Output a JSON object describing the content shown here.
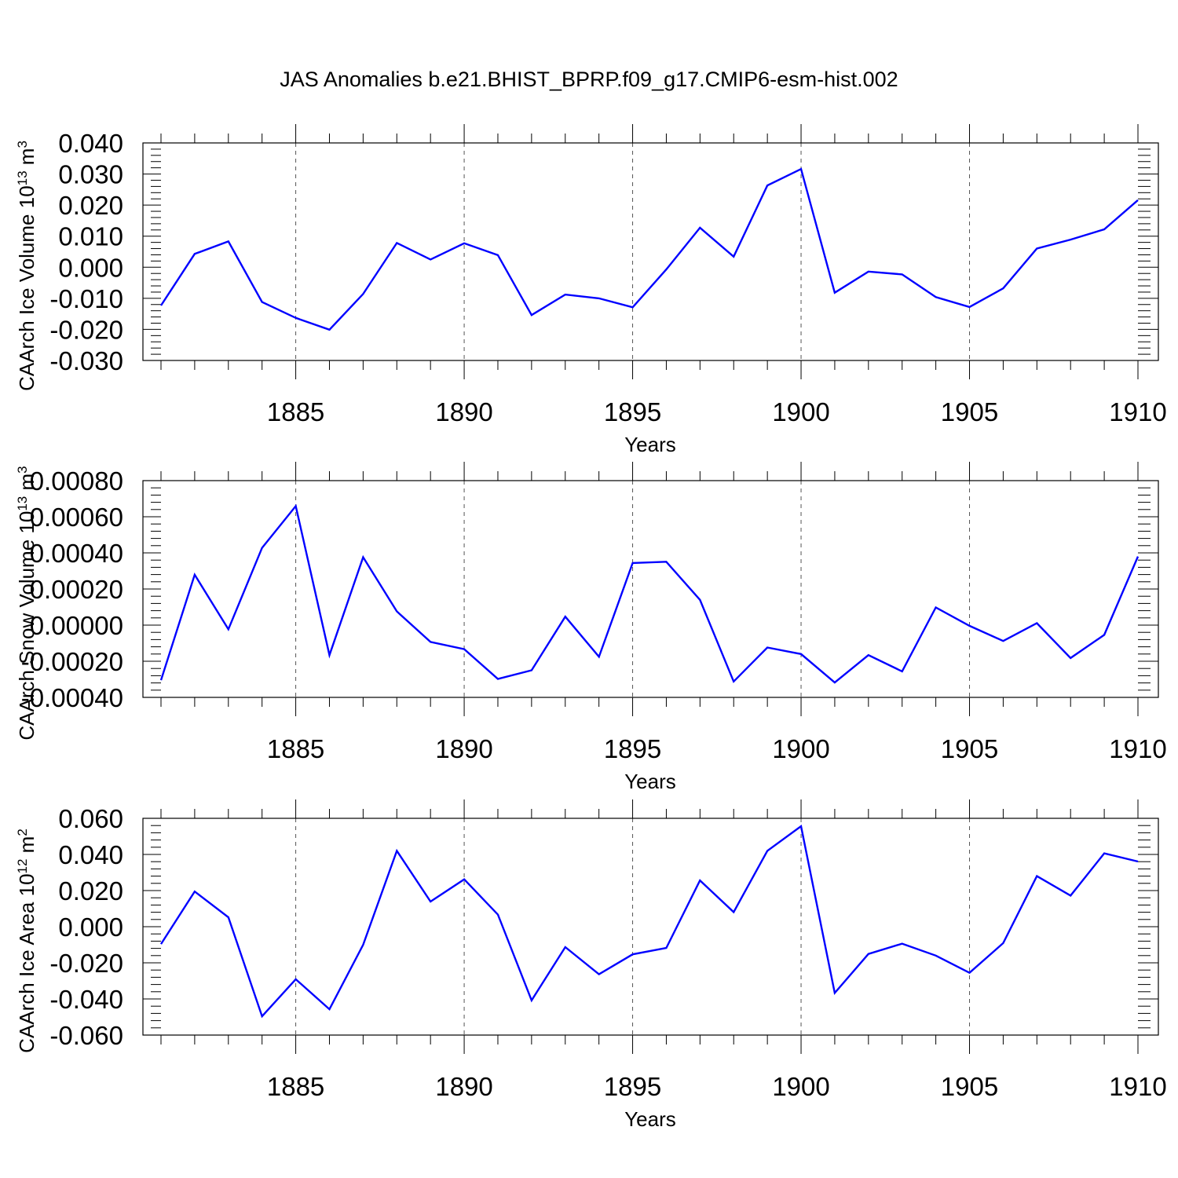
{
  "title": "JAS Anomalies b.e21.BHIST_BPRP.f09_g17.CMIP6-esm-hist.002",
  "chart_data": [
    {
      "type": "line",
      "ylabel": "CAArch Ice Volume 10",
      "ylabel_sup": "13",
      "ylabel_unit": " m",
      "ylabel_unit_sup": "3",
      "xlabel": "Years",
      "xlim": [
        1881,
        1910
      ],
      "ylim": [
        -0.03,
        0.04
      ],
      "xticks": [
        1885,
        1890,
        1895,
        1900,
        1905,
        1910
      ],
      "xtick_labels": [
        "1885",
        "1890",
        "1895",
        "1900",
        "1905",
        "1910"
      ],
      "yticks": [
        -0.03,
        -0.02,
        -0.01,
        0.0,
        0.01,
        0.02,
        0.03,
        0.04
      ],
      "ytick_labels": [
        "-0.030",
        "-0.020",
        "-0.010",
        "0.000",
        "0.010",
        "0.020",
        "0.030",
        "0.040"
      ],
      "x": [
        1881,
        1882,
        1883,
        1884,
        1885,
        1886,
        1887,
        1888,
        1889,
        1890,
        1891,
        1892,
        1893,
        1894,
        1895,
        1896,
        1897,
        1898,
        1899,
        1900,
        1901,
        1902,
        1903,
        1904,
        1905,
        1906,
        1907,
        1908,
        1909,
        1910
      ],
      "values": [
        -0.0123,
        0.0043,
        0.0083,
        -0.0112,
        -0.0163,
        -0.0201,
        -0.0086,
        0.0078,
        0.0025,
        0.0077,
        0.0039,
        -0.0154,
        -0.0088,
        -0.01,
        -0.0129,
        -0.0007,
        0.0127,
        0.0034,
        0.0263,
        0.0316,
        -0.0082,
        -0.0014,
        -0.0023,
        -0.0096,
        -0.0128,
        -0.0068,
        0.006,
        0.0089,
        0.0122,
        0.0216
      ],
      "color": "#0000ff",
      "grid": "vertical dashed at major x ticks"
    },
    {
      "type": "line",
      "ylabel": "CAArch Snow Volume 10",
      "ylabel_sup": "13",
      "ylabel_unit": " m",
      "ylabel_unit_sup": "3",
      "xlabel": "Years",
      "xlim": [
        1881,
        1910
      ],
      "ylim": [
        -0.0004,
        0.0008
      ],
      "xticks": [
        1885,
        1890,
        1895,
        1900,
        1905,
        1910
      ],
      "xtick_labels": [
        "1885",
        "1890",
        "1895",
        "1900",
        "1905",
        "1910"
      ],
      "yticks": [
        -0.0004,
        -0.0002,
        0.0,
        0.0002,
        0.0004,
        0.0006,
        0.0008
      ],
      "ytick_labels": [
        "-0.00040",
        "-0.00020",
        "0.00000",
        "0.00020",
        "0.00040",
        "0.00060",
        "0.00080"
      ],
      "x": [
        1881,
        1882,
        1883,
        1884,
        1885,
        1886,
        1887,
        1888,
        1889,
        1890,
        1891,
        1892,
        1893,
        1894,
        1895,
        1896,
        1897,
        1898,
        1899,
        1900,
        1901,
        1902,
        1903,
        1904,
        1905,
        1906,
        1907,
        1908,
        1909,
        1910
      ],
      "values": [
        -0.000305,
        0.000279,
        -2.3e-05,
        0.000428,
        0.000659,
        -0.000166,
        0.000376,
        7.6e-05,
        -9.3e-05,
        -0.000133,
        -0.000298,
        -0.00025,
        4.7e-05,
        -0.000175,
        0.000344,
        0.000351,
        0.00014,
        -0.000312,
        -0.000124,
        -0.00016,
        -0.000318,
        -0.000166,
        -0.000256,
        9.8e-05,
        -4e-06,
        -8.8e-05,
        1.1e-05,
        -0.000182,
        -5.4e-05,
        0.00038
      ],
      "color": "#0000ff",
      "grid": "vertical dashed at major x ticks"
    },
    {
      "type": "line",
      "ylabel": "CAArch Ice Area 10",
      "ylabel_sup": "12",
      "ylabel_unit": " m",
      "ylabel_unit_sup": "2",
      "xlabel": "Years",
      "xlim": [
        1881,
        1910
      ],
      "ylim": [
        -0.06,
        0.06
      ],
      "xticks": [
        1885,
        1890,
        1895,
        1900,
        1905,
        1910
      ],
      "xtick_labels": [
        "1885",
        "1890",
        "1895",
        "1900",
        "1905",
        "1910"
      ],
      "yticks": [
        -0.06,
        -0.04,
        -0.02,
        0.0,
        0.02,
        0.04,
        0.06
      ],
      "ytick_labels": [
        "-0.060",
        "-0.040",
        "-0.020",
        "0.000",
        "0.020",
        "0.040",
        "0.060"
      ],
      "x": [
        1881,
        1882,
        1883,
        1884,
        1885,
        1886,
        1887,
        1888,
        1889,
        1890,
        1891,
        1892,
        1893,
        1894,
        1895,
        1896,
        1897,
        1898,
        1899,
        1900,
        1901,
        1902,
        1903,
        1904,
        1905,
        1906,
        1907,
        1908,
        1909,
        1910
      ],
      "values": [
        -0.0096,
        0.0195,
        0.0052,
        -0.0496,
        -0.0291,
        -0.0457,
        -0.01,
        0.042,
        0.0139,
        0.0262,
        0.0067,
        -0.0408,
        -0.0113,
        -0.0263,
        -0.0153,
        -0.0118,
        0.0256,
        0.0081,
        0.042,
        0.0556,
        -0.0367,
        -0.0151,
        -0.0094,
        -0.016,
        -0.0255,
        -0.0091,
        0.028,
        0.0172,
        0.0406,
        0.0361
      ],
      "color": "#0000ff",
      "grid": "vertical dashed at major x ticks"
    }
  ]
}
